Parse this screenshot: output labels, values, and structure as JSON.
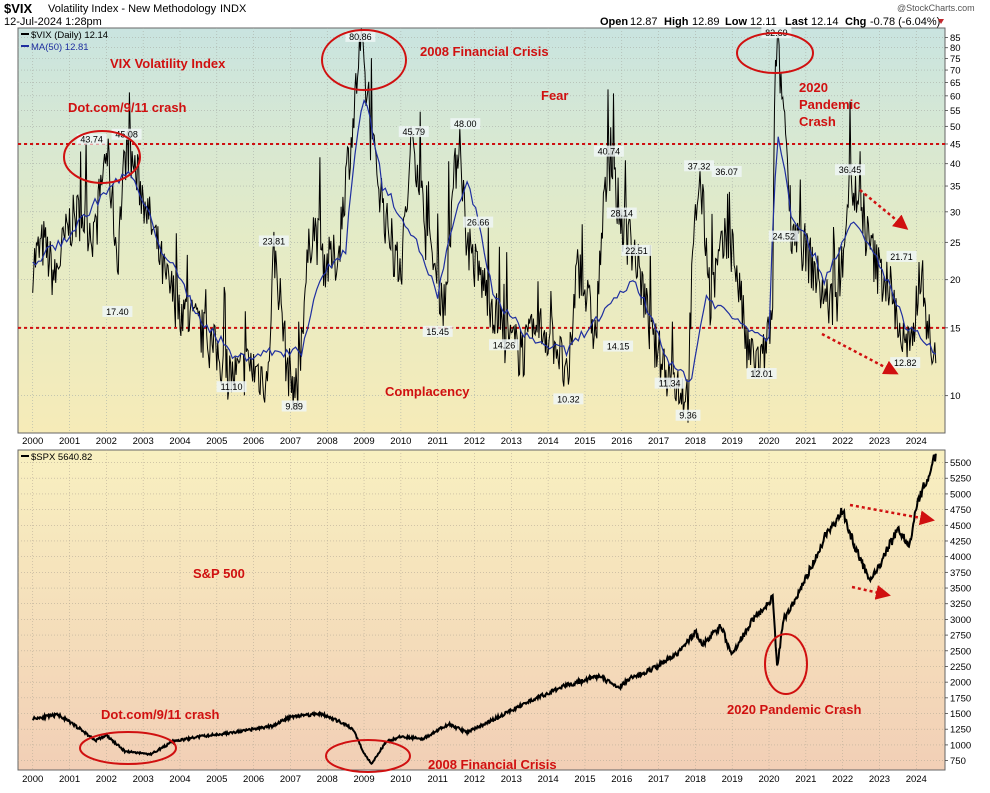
{
  "header": {
    "symbol": "$VIX",
    "description": "Volatility Index - New Methodology",
    "exchange": "INDX",
    "date": "12-Jul-2024 1:28pm",
    "watermark": "@StockCharts.com",
    "quote": {
      "open_label": "Open",
      "open": "12.87",
      "high_label": "High",
      "high": "12.89",
      "low_label": "Low",
      "low": "12.11",
      "last_label": "Last",
      "last": "12.14",
      "chg_label": "Chg",
      "chg": "-0.78 (-6.04%)"
    }
  },
  "colors": {
    "annotation": "#d01010",
    "vix_line": "#000000",
    "ma_line": "#1f2fa0",
    "grid": "#9aa0a6"
  },
  "chart_data": [
    {
      "type": "line",
      "legend": [
        "$VIX (Daily) 12.14",
        "MA(50) 12.81"
      ],
      "log_scale": true,
      "ylim": [
        8,
        90
      ],
      "y_ticks": [
        10,
        15,
        20,
        25,
        30,
        35,
        40,
        45,
        50,
        55,
        60,
        65,
        70,
        75,
        80,
        85
      ],
      "x_ticks": [
        "2000",
        "2001",
        "2002",
        "2003",
        "2004",
        "2005",
        "2006",
        "2007",
        "2008",
        "2009",
        "2010",
        "2011",
        "2012",
        "2013",
        "2014",
        "2015",
        "2016",
        "2017",
        "2018",
        "2019",
        "2020",
        "2021",
        "2022",
        "2023",
        "2024"
      ],
      "grid": true,
      "series": [
        {
          "name": "$VIX (Daily)",
          "x": [
            2000.0,
            2000.3,
            2000.6,
            2001.0,
            2001.3,
            2001.7,
            2002.0,
            2002.3,
            2002.55,
            2002.8,
            2003.2,
            2003.6,
            2004.0,
            2004.5,
            2005.0,
            2005.4,
            2005.9,
            2006.4,
            2006.55,
            2006.9,
            2007.2,
            2007.6,
            2007.95,
            2008.3,
            2008.7,
            2008.9,
            2009.2,
            2009.6,
            2010.0,
            2010.35,
            2010.7,
            2011.2,
            2011.6,
            2011.75,
            2012.0,
            2012.4,
            2012.8,
            2013.3,
            2013.8,
            2014.2,
            2014.55,
            2014.8,
            2015.3,
            2015.65,
            2016.0,
            2016.4,
            2016.8,
            2017.3,
            2017.8,
            2018.1,
            2018.4,
            2018.8,
            2019.0,
            2019.4,
            2019.8,
            2020.1,
            2020.2,
            2020.6,
            2021.0,
            2021.5,
            2021.9,
            2022.2,
            2022.6,
            2022.9,
            2023.3,
            2023.6,
            2023.9,
            2024.1,
            2024.4,
            2024.53
          ],
          "values": [
            22,
            25,
            20,
            28,
            30,
            26,
            43.74,
            22,
            45.08,
            38,
            28,
            20,
            17,
            15,
            13,
            11.1,
            12,
            11,
            23.81,
            12,
            10,
            28,
            22,
            23,
            50,
            80.86,
            45,
            28,
            20,
            45.79,
            25,
            17,
            48,
            26.66,
            22,
            18,
            14.26,
            13,
            15,
            14,
            10.32,
            22,
            14,
            40.74,
            28.14,
            22.51,
            14,
            11.34,
            10,
            37.32,
            18,
            25,
            24.52,
            13,
            12.01,
            16,
            82.69,
            28,
            24,
            18,
            17,
            36.45,
            27,
            22,
            19,
            14,
            13,
            21.71,
            12.82,
            12.14
          ]
        },
        {
          "name": "MA(50)",
          "x": [
            2000.0,
            2001.0,
            2002.0,
            2002.6,
            2003.5,
            2004.5,
            2005.5,
            2006.5,
            2007.3,
            2007.8,
            2008.5,
            2009.0,
            2009.5,
            2010.5,
            2011.0,
            2011.8,
            2012.5,
            2013.5,
            2014.5,
            2015.7,
            2016.3,
            2017.3,
            2017.9,
            2018.3,
            2019.0,
            2020.0,
            2020.25,
            2020.6,
            2021.5,
            2022.3,
            2023.0,
            2023.7,
            2024.2,
            2024.53
          ],
          "values": [
            22,
            26,
            34,
            38,
            24,
            16,
            12.5,
            13,
            13,
            20,
            24,
            60,
            35,
            24,
            18,
            36,
            18,
            14,
            13,
            17,
            20,
            12,
            11,
            18,
            16,
            14,
            48,
            30,
            20,
            28,
            22,
            15,
            14,
            12.81
          ]
        }
      ],
      "peak_labels": [
        {
          "x": 2001.6,
          "value": 43.74,
          "label": "43.74"
        },
        {
          "x": 2002.55,
          "value": 45.08,
          "label": "45.08"
        },
        {
          "x": 2002.3,
          "value": 17.4,
          "label": "17.40"
        },
        {
          "x": 2005.4,
          "value": 11.1,
          "label": "11.10"
        },
        {
          "x": 2006.55,
          "value": 23.81,
          "label": "23.81"
        },
        {
          "x": 2007.1,
          "value": 9.89,
          "label": "9.89"
        },
        {
          "x": 2008.9,
          "value": 80.86,
          "label": "80.86"
        },
        {
          "x": 2010.35,
          "value": 45.79,
          "label": "45.79"
        },
        {
          "x": 2011.75,
          "value": 48.0,
          "label": "48.00"
        },
        {
          "x": 2011.0,
          "value": 15.45,
          "label": "15.45"
        },
        {
          "x": 2012.1,
          "value": 26.66,
          "label": "26.66"
        },
        {
          "x": 2012.8,
          "value": 14.26,
          "label": "14.26"
        },
        {
          "x": 2014.55,
          "value": 10.32,
          "label": "10.32"
        },
        {
          "x": 2015.65,
          "value": 40.74,
          "label": "40.74"
        },
        {
          "x": 2016.0,
          "value": 28.14,
          "label": "28.14"
        },
        {
          "x": 2016.4,
          "value": 22.51,
          "label": "22.51"
        },
        {
          "x": 2015.9,
          "value": 14.15,
          "label": "14.15"
        },
        {
          "x": 2017.3,
          "value": 11.34,
          "label": "11.34"
        },
        {
          "x": 2017.8,
          "value": 9.36,
          "label": "9.36"
        },
        {
          "x": 2018.1,
          "value": 37.32,
          "label": "37.32"
        },
        {
          "x": 2018.85,
          "value": 36.07,
          "label": "36.07"
        },
        {
          "x": 2019.8,
          "value": 12.01,
          "label": "12.01"
        },
        {
          "x": 2020.2,
          "value": 82.69,
          "label": "82.69"
        },
        {
          "x": 2020.4,
          "value": 24.52,
          "label": "24.52"
        },
        {
          "x": 2022.2,
          "value": 36.45,
          "label": "36.45"
        },
        {
          "x": 2023.6,
          "value": 21.71,
          "label": "21.71"
        },
        {
          "x": 2023.7,
          "value": 12.82,
          "label": "12.82"
        }
      ],
      "reference_lines": [
        45,
        15
      ],
      "annotations": [
        "VIX Volatility Index",
        "Dot.com/9/11 crash",
        "2008 Financial Crisis",
        "Fear",
        "2020",
        "Pandemic",
        "Crash",
        "Complacency"
      ]
    },
    {
      "type": "line",
      "legend": [
        "$SPX 5640.82"
      ],
      "ylim": [
        600,
        5700
      ],
      "y_ticks": [
        750,
        1000,
        1250,
        1500,
        1750,
        2000,
        2250,
        2500,
        2750,
        3000,
        3250,
        3500,
        3750,
        4000,
        4250,
        4500,
        4750,
        5000,
        5250,
        5500
      ],
      "x_ticks": [
        "2000",
        "2001",
        "2002",
        "2003",
        "2004",
        "2005",
        "2006",
        "2007",
        "2008",
        "2009",
        "2010",
        "2011",
        "2012",
        "2013",
        "2014",
        "2015",
        "2016",
        "2017",
        "2018",
        "2019",
        "2020",
        "2021",
        "2022",
        "2023",
        "2024"
      ],
      "grid": true,
      "series": [
        {
          "name": "$SPX",
          "x": [
            2000.0,
            2000.7,
            2001.3,
            2001.7,
            2002.0,
            2002.5,
            2002.8,
            2003.2,
            2003.8,
            2004.5,
            2005.5,
            2006.5,
            2007.0,
            2007.8,
            2008.3,
            2008.7,
            2009.0,
            2009.2,
            2009.6,
            2010.0,
            2010.6,
            2011.3,
            2011.8,
            2012.5,
            2013.5,
            2014.5,
            2015.4,
            2015.9,
            2016.2,
            2016.8,
            2017.5,
            2018.0,
            2018.2,
            2018.7,
            2018.98,
            2019.5,
            2020.1,
            2020.22,
            2020.4,
            2020.8,
            2021.5,
            2022.0,
            2022.3,
            2022.75,
            2023.0,
            2023.5,
            2023.8,
            2024.0,
            2024.3,
            2024.53
          ],
          "values": [
            1420,
            1480,
            1250,
            1070,
            1150,
            900,
            880,
            850,
            1050,
            1130,
            1200,
            1300,
            1450,
            1500,
            1380,
            1250,
            870,
            700,
            1050,
            1130,
            1100,
            1330,
            1200,
            1400,
            1700,
            1950,
            2100,
            1900,
            2050,
            2200,
            2450,
            2800,
            2600,
            2900,
            2420,
            2950,
            3350,
            2240,
            3000,
            3400,
            4300,
            4750,
            4200,
            3600,
            3850,
            4450,
            4150,
            4800,
            5250,
            5640.82
          ]
        }
      ],
      "annotations": [
        "S&P 500",
        "Dot.com/9/11 crash",
        "2008 Financial Crisis",
        "2020 Pandemic Crash"
      ]
    }
  ]
}
